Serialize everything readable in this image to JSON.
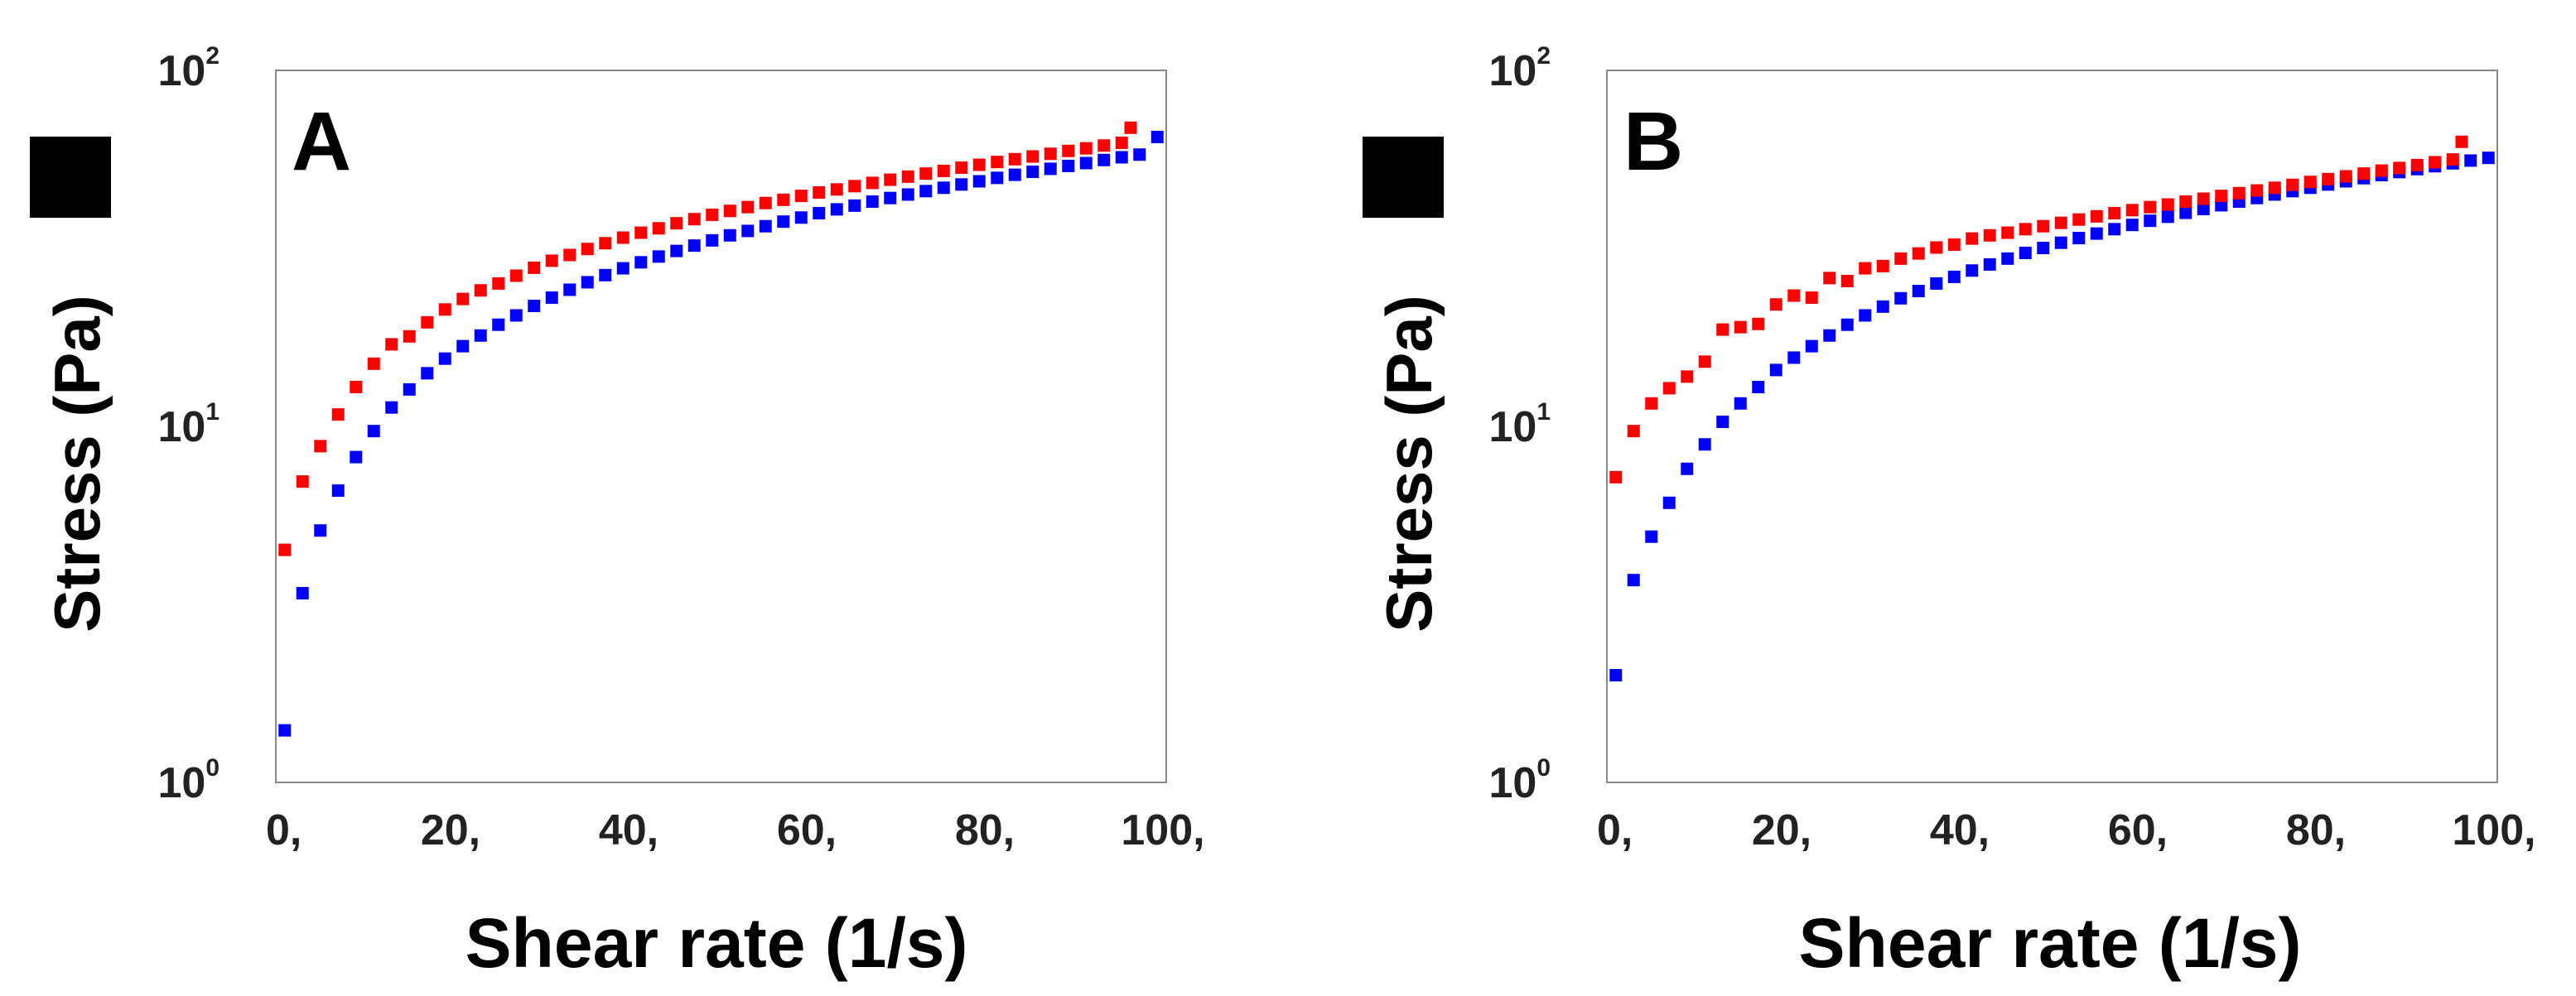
{
  "chart_data": [
    {
      "type": "scatter",
      "panel_label": "A",
      "xlabel": "Shear rate  (1/s)",
      "ylabel": "Stress  (Pa)",
      "xlim": [
        0,
        100
      ],
      "ylim": [
        1,
        100
      ],
      "yscale": "log",
      "x_ticks": [
        0,
        20,
        40,
        60,
        80,
        100
      ],
      "x_tick_labels": [
        "0,",
        "20,",
        "40,",
        "60,",
        "80,",
        "100,"
      ],
      "y_ticks": [
        {
          "value": 1,
          "base": "10",
          "exp": "0"
        },
        {
          "value": 10,
          "base": "10",
          "exp": "1"
        },
        {
          "value": 100,
          "base": "10",
          "exp": "2"
        }
      ],
      "grid": false,
      "series": [
        {
          "name": "red",
          "color": "#ff0000",
          "x": [
            1,
            3,
            5,
            7,
            9,
            11,
            13,
            15,
            17,
            19,
            21,
            23,
            25,
            27,
            29,
            31,
            33,
            35,
            37,
            39,
            41,
            43,
            45,
            47,
            49,
            51,
            53,
            55,
            57,
            59,
            61,
            63,
            65,
            67,
            69,
            71,
            73,
            75,
            77,
            79,
            81,
            83,
            85,
            87,
            89,
            91,
            93,
            95,
            96
          ],
          "y": [
            4.5,
            7.0,
            8.8,
            10.8,
            12.9,
            15.0,
            17.0,
            17.9,
            19.6,
            21.3,
            22.8,
            24.1,
            25.2,
            26.5,
            27.9,
            29.2,
            30.3,
            31.5,
            32.7,
            33.9,
            35.0,
            36.0,
            37.2,
            38.2,
            39.3,
            40.3,
            41.3,
            42.4,
            43.3,
            44.4,
            45.4,
            46.3,
            47.3,
            48.3,
            49.3,
            50.3,
            51.3,
            52.2,
            53.3,
            54.3,
            55.3,
            56.3,
            57.3,
            58.3,
            59.4,
            60.4,
            61.5,
            62.6,
            69.0
          ]
        },
        {
          "name": "blue",
          "color": "#0000ff",
          "x": [
            1,
            3,
            5,
            7,
            9,
            11,
            13,
            15,
            17,
            19,
            21,
            23,
            25,
            27,
            29,
            31,
            33,
            35,
            37,
            39,
            41,
            43,
            45,
            47,
            49,
            51,
            53,
            55,
            57,
            59,
            61,
            63,
            65,
            67,
            69,
            71,
            73,
            75,
            77,
            79,
            81,
            83,
            85,
            87,
            89,
            91,
            93,
            95,
            97,
            99
          ],
          "y": [
            1.4,
            3.4,
            5.1,
            6.6,
            8.2,
            9.7,
            11.3,
            12.7,
            14.1,
            15.5,
            16.8,
            18.0,
            19.3,
            20.5,
            21.8,
            23.0,
            24.2,
            25.4,
            26.6,
            27.8,
            28.9,
            30.0,
            31.1,
            32.2,
            33.3,
            34.4,
            35.4,
            36.5,
            37.6,
            38.6,
            39.7,
            40.7,
            41.7,
            42.8,
            43.8,
            44.8,
            45.8,
            46.8,
            47.8,
            48.8,
            49.9,
            50.9,
            51.9,
            52.9,
            53.9,
            54.9,
            56.0,
            57.0,
            58.0,
            65.0
          ]
        }
      ]
    },
    {
      "type": "scatter",
      "panel_label": "B",
      "xlabel": "Shear rate  (1/s)",
      "ylabel": "Stress  (Pa)",
      "xlim": [
        0,
        100
      ],
      "ylim": [
        1,
        100
      ],
      "yscale": "log",
      "x_ticks": [
        0,
        20,
        40,
        60,
        80,
        100
      ],
      "x_tick_labels": [
        "0,",
        "20,",
        "40,",
        "60,",
        "80,",
        "100,"
      ],
      "y_ticks": [
        {
          "value": 1,
          "base": "10",
          "exp": "0"
        },
        {
          "value": 10,
          "base": "10",
          "exp": "1"
        },
        {
          "value": 100,
          "base": "10",
          "exp": "2"
        }
      ],
      "grid": false,
      "series": [
        {
          "name": "red",
          "color": "#ff0000",
          "x": [
            1,
            3,
            5,
            7,
            9,
            11,
            13,
            15,
            17,
            19,
            21,
            23,
            25,
            27,
            29,
            31,
            33,
            35,
            37,
            39,
            41,
            43,
            45,
            47,
            49,
            51,
            53,
            55,
            57,
            59,
            61,
            63,
            65,
            67,
            69,
            71,
            73,
            75,
            77,
            79,
            81,
            83,
            85,
            87,
            89,
            91,
            93,
            95,
            96
          ],
          "y": [
            7.2,
            9.7,
            11.6,
            12.8,
            13.8,
            15.2,
            18.7,
            19.0,
            19.4,
            22.0,
            23.3,
            23.0,
            26.1,
            25.6,
            27.8,
            28.2,
            29.6,
            30.6,
            31.8,
            32.4,
            33.7,
            34.4,
            35.0,
            35.8,
            36.5,
            37.3,
            38.1,
            38.9,
            39.7,
            40.5,
            41.3,
            42.0,
            42.8,
            43.6,
            44.4,
            45.2,
            46.0,
            46.8,
            47.7,
            48.6,
            49.5,
            50.4,
            51.3,
            52.3,
            53.2,
            54.2,
            55.2,
            56.2,
            63.0
          ]
        },
        {
          "name": "blue",
          "color": "#0000ff",
          "x": [
            1,
            3,
            5,
            7,
            9,
            11,
            13,
            15,
            17,
            19,
            21,
            23,
            25,
            27,
            29,
            31,
            33,
            35,
            37,
            39,
            41,
            43,
            45,
            47,
            49,
            51,
            53,
            55,
            57,
            59,
            61,
            63,
            65,
            67,
            69,
            71,
            73,
            75,
            77,
            79,
            81,
            83,
            85,
            87,
            89,
            91,
            93,
            95,
            97,
            99
          ],
          "y": [
            2.0,
            3.7,
            4.9,
            6.1,
            7.6,
            8.9,
            10.3,
            11.6,
            12.9,
            14.4,
            15.6,
            16.8,
            18.0,
            19.3,
            20.5,
            21.7,
            22.9,
            24.0,
            25.2,
            26.3,
            27.4,
            28.5,
            29.6,
            30.7,
            31.7,
            32.8,
            33.8,
            34.8,
            35.8,
            36.8,
            37.8,
            38.8,
            39.8,
            40.8,
            41.8,
            42.8,
            43.8,
            44.8,
            45.8,
            46.8,
            47.8,
            48.8,
            49.8,
            50.8,
            51.8,
            52.8,
            53.8,
            54.8,
            55.8,
            56.8
          ]
        }
      ]
    }
  ]
}
